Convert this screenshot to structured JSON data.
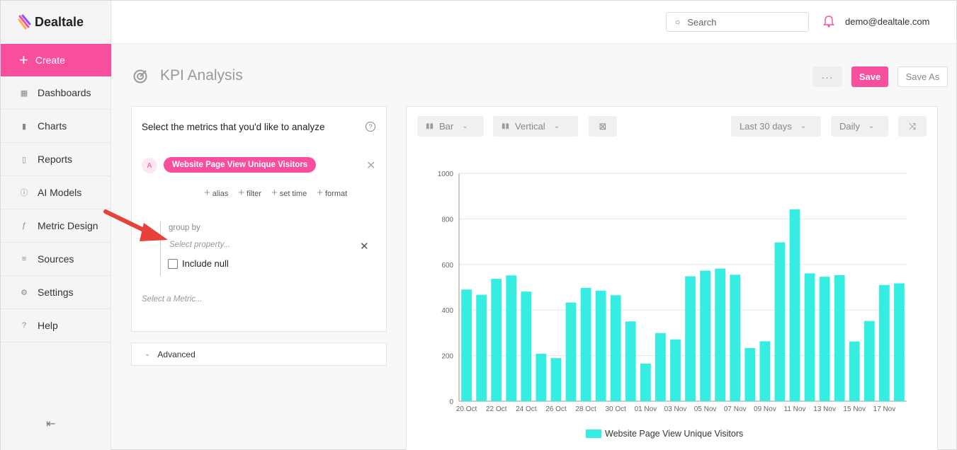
{
  "app": {
    "name": "Dealtale"
  },
  "sidebar": {
    "create_label": "Create",
    "items": [
      {
        "label": "Dashboards",
        "icon": "grid-icon"
      },
      {
        "label": "Charts",
        "icon": "bar-chart-icon"
      },
      {
        "label": "Reports",
        "icon": "document-icon"
      },
      {
        "label": "AI Models",
        "icon": "info-circle-icon"
      },
      {
        "label": "Metric Design",
        "icon": "function-icon"
      },
      {
        "label": "Sources",
        "icon": "database-icon"
      },
      {
        "label": "Settings",
        "icon": "gear-icon"
      },
      {
        "label": "Help",
        "icon": "question-icon"
      }
    ]
  },
  "topbar": {
    "search_placeholder": "Search",
    "user_email": "demo@dealtale.com"
  },
  "header": {
    "title": "KPI Analysis",
    "more_label": "···",
    "save_label": "Save",
    "save_as_label": "Save As"
  },
  "metrics_panel": {
    "title": "Select the metrics that you'd like to analyze",
    "help": "?",
    "metric_letter": "A",
    "metric_name": "Website Page View Unique Visitors",
    "actions": [
      "alias",
      "filter",
      "set time",
      "format"
    ],
    "group_by_label": "group by",
    "select_property_placeholder": "Select property...",
    "include_null_label": "Include null",
    "select_metric_placeholder": "Select a Metric..."
  },
  "advanced": {
    "label": "Advanced"
  },
  "chart_toolbar": {
    "type_label": "Bar",
    "orientation_label": "Vertical",
    "range_label": "Last 30 days",
    "granularity_label": "Daily"
  },
  "colors": {
    "accent": "#f74f9e",
    "bar": "#35eee1"
  },
  "chart_data": {
    "type": "bar",
    "categories": [
      "20 Oct",
      "21 Oct",
      "22 Oct",
      "23 Oct",
      "24 Oct",
      "25 Oct",
      "26 Oct",
      "27 Oct",
      "28 Oct",
      "29 Oct",
      "30 Oct",
      "31 Oct",
      "01 Nov",
      "02 Nov",
      "03 Nov",
      "04 Nov",
      "05 Nov",
      "06 Nov",
      "07 Nov",
      "08 Nov",
      "09 Nov",
      "10 Nov",
      "11 Nov",
      "12 Nov",
      "13 Nov",
      "14 Nov",
      "15 Nov",
      "16 Nov",
      "17 Nov",
      "18 Nov"
    ],
    "tick_labels": [
      "20 Oct",
      "22 Oct",
      "24 Oct",
      "26 Oct",
      "28 Oct",
      "30 Oct",
      "01 Nov",
      "03 Nov",
      "05 Nov",
      "07 Nov",
      "09 Nov",
      "11 Nov",
      "13 Nov",
      "15 Nov",
      "17 Nov"
    ],
    "series": [
      {
        "name": "Website Page View Unique Visitors",
        "values": [
          490,
          467,
          537,
          552,
          481,
          208,
          189,
          433,
          497,
          485,
          465,
          350,
          165,
          299,
          271,
          548,
          573,
          582,
          555,
          233,
          263,
          697,
          842,
          561,
          546,
          553,
          262,
          352,
          510,
          517
        ]
      }
    ],
    "yticks": [
      0,
      200,
      400,
      600,
      800,
      1000
    ],
    "ylim": [
      0,
      1000
    ],
    "grid": true,
    "legend": "bottom"
  }
}
